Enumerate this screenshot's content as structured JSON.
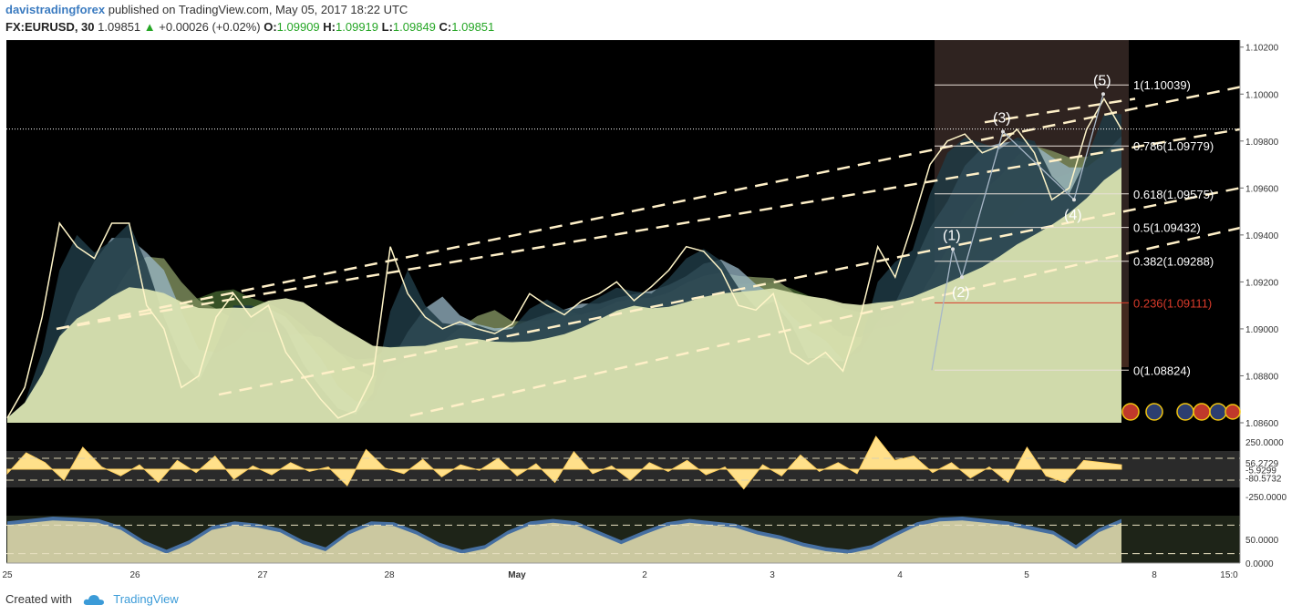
{
  "header": {
    "author": "davistradingforex",
    "published": "published on TradingView.com, May 05, 2017 18:22 UTC",
    "symbol": "FX:EURUSD, 30",
    "last": "1.09851",
    "change": "+0.00026 (+0.02%)",
    "o_label": "O:",
    "o": "1.09909",
    "h_label": "H:",
    "h": "1.09919",
    "l_label": "L:",
    "l": "1.09849",
    "c_label": "C:",
    "c": "1.09851"
  },
  "footer": {
    "created": "Created with",
    "brand": "TradingView",
    "logo_icon": "cloud-icon"
  },
  "colors": {
    "background": "#000000",
    "price_line": "#fff5c8",
    "ma_fill": "#d9e2b0",
    "channel": "#fff0c8",
    "fib_zone": "#55403a",
    "fib_red": "#d83a2a",
    "osc_fill": "#ffe08a",
    "stoch_blue": "#4a78b0"
  },
  "chart_data": {
    "type": "line",
    "title": "",
    "xlabel": "",
    "ylabel": "",
    "x_ticks": [
      "25",
      "26",
      "27",
      "28",
      "May",
      "2",
      "3",
      "4",
      "5",
      "8",
      "15:0"
    ],
    "ylim": [
      1.086,
      1.1023
    ],
    "y_ticks": [
      "1.10200",
      "1.10000",
      "1.09800",
      "1.09600",
      "1.09400",
      "1.09200",
      "1.09000",
      "1.08800",
      "1.08600"
    ],
    "current_price": 1.09851,
    "series": [
      {
        "values": [
          1.0862,
          1.0875,
          1.0905,
          1.0945,
          1.0935,
          1.093,
          1.0945,
          1.0945,
          1.091,
          1.09,
          1.0875,
          1.088,
          1.0905,
          1.0915,
          1.0905,
          1.091,
          1.089,
          1.088,
          1.087,
          1.0862,
          1.0865,
          1.088,
          1.0935,
          1.0915,
          1.0905,
          1.09,
          1.0903,
          1.09,
          1.0898,
          1.0902,
          1.0915,
          1.091,
          1.0906,
          1.0912,
          1.0915,
          1.092,
          1.0912,
          1.0918,
          1.0925,
          1.0935,
          1.0933,
          1.0925,
          1.091,
          1.0908,
          1.0915,
          1.089,
          1.0885,
          1.089,
          1.0882,
          1.0905,
          1.0935,
          1.0922,
          1.0945,
          1.097,
          1.098,
          1.0983,
          1.0975,
          1.0978,
          1.0985,
          1.0975,
          1.0955,
          1.096,
          1.0985,
          1.0998,
          1.0985
        ]
      }
    ],
    "fibonacci": [
      {
        "label": "1(1.10039)",
        "value": 1.10039
      },
      {
        "label": "0.786(1.09779)",
        "value": 1.09779
      },
      {
        "label": "0.618(1.09575)",
        "value": 1.09575
      },
      {
        "label": "0.5(1.09432)",
        "value": 1.09432
      },
      {
        "label": "0.382(1.09288)",
        "value": 1.09288
      },
      {
        "label": "0.236(1.09111)",
        "value": 1.09111
      },
      {
        "label": "0(1.08824)",
        "value": 1.08824
      }
    ],
    "waves": [
      {
        "label": "(1)",
        "value": 1.0934
      },
      {
        "label": "(2)",
        "value": 1.0922
      },
      {
        "label": "(3)",
        "value": 1.0984
      },
      {
        "label": "(4)",
        "value": 1.0955
      },
      {
        "label": "(5)",
        "value": 1.1
      }
    ],
    "oscillator_cci": {
      "ylim": [
        -400,
        400
      ],
      "ticks": [
        "250.0000",
        "56.2729",
        "-5.9299",
        "-80.5732",
        "-250.0000"
      ],
      "values": [
        -40,
        150,
        60,
        -100,
        200,
        20,
        -60,
        40,
        -120,
        80,
        -30,
        120,
        -90,
        30,
        -50,
        60,
        -20,
        20,
        -150,
        180,
        10,
        -40,
        90,
        -70,
        40,
        -10,
        100,
        -60,
        50,
        -120,
        160,
        -40,
        30,
        -100,
        60,
        -20,
        80,
        -50,
        20,
        -180,
        40,
        -60,
        130,
        -20,
        60,
        -40,
        300,
        80,
        120,
        -30,
        60,
        -80,
        20,
        -120,
        200,
        -60,
        -120,
        80,
        60,
        40
      ]
    },
    "oscillator_stoch": {
      "ylim": [
        0,
        100
      ],
      "ticks": [
        "50.0000",
        "0.0000"
      ],
      "values": [
        80,
        85,
        90,
        88,
        85,
        70,
        40,
        20,
        40,
        70,
        80,
        75,
        65,
        40,
        25,
        60,
        80,
        78,
        60,
        35,
        20,
        30,
        60,
        80,
        85,
        80,
        60,
        40,
        60,
        78,
        85,
        80,
        75,
        60,
        50,
        35,
        25,
        20,
        30,
        55,
        78,
        88,
        90,
        85,
        80,
        70,
        60,
        30,
        65,
        85
      ]
    },
    "legend": "none",
    "grid": false
  }
}
